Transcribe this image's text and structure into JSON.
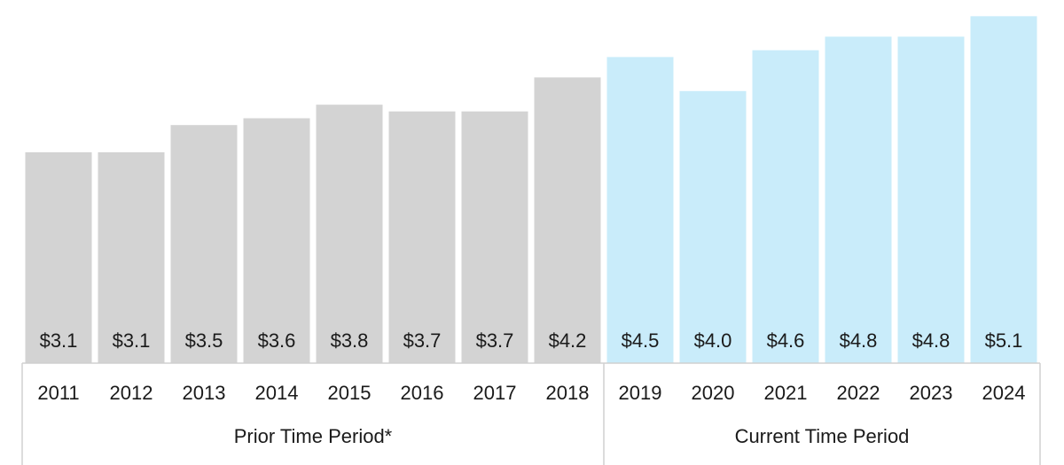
{
  "chart_data": {
    "type": "bar",
    "categories": [
      "2011",
      "2012",
      "2013",
      "2014",
      "2015",
      "2016",
      "2017",
      "2018",
      "2019",
      "2020",
      "2021",
      "2022",
      "2023",
      "2024"
    ],
    "values": [
      3.1,
      3.1,
      3.5,
      3.6,
      3.8,
      3.7,
      3.7,
      4.2,
      4.5,
      4.0,
      4.6,
      4.8,
      4.8,
      5.1
    ],
    "value_labels": [
      "$3.1",
      "$3.1",
      "$3.5",
      "$3.6",
      "$3.8",
      "$3.7",
      "$3.7",
      "$4.2",
      "$4.5",
      "$4.0",
      "$4.6",
      "$4.8",
      "$4.8",
      "$5.1"
    ],
    "groups": [
      {
        "label": "Prior Time Period*",
        "categories": [
          "2011",
          "2012",
          "2013",
          "2014",
          "2015",
          "2016",
          "2017",
          "2018"
        ],
        "color": "#d3d3d3"
      },
      {
        "label": "Current Time Period",
        "categories": [
          "2019",
          "2020",
          "2021",
          "2022",
          "2023",
          "2024"
        ],
        "color": "#c9ecfa"
      }
    ],
    "title": "",
    "xlabel": "",
    "ylabel": "",
    "grid": false,
    "legend": "none"
  }
}
